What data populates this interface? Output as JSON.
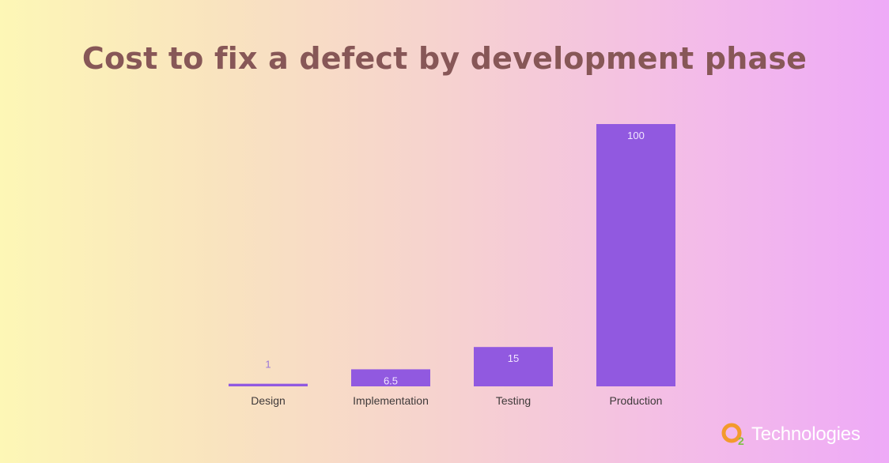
{
  "chart_data": {
    "type": "bar",
    "title": "Cost to fix a defect by development phase",
    "categories": [
      "Design",
      "Implementation",
      "Testing",
      "Production"
    ],
    "values": [
      1,
      6.5,
      15,
      100
    ],
    "value_labels": [
      "1",
      "6.5",
      "15",
      "100"
    ],
    "ylim": [
      0,
      100
    ],
    "grid": false,
    "bar_color": "#9159e0",
    "value_label_outside_color": "#9b78d8",
    "value_label_inside_color": "#f1e6ff",
    "category_label_color": "#3f3a3a"
  },
  "title_color": "#875757",
  "logo": {
    "text": "Technologies",
    "mark_letter": "2",
    "icon": "o2-logo-mark",
    "colors": [
      "#f39a2d",
      "#7fc144"
    ]
  }
}
